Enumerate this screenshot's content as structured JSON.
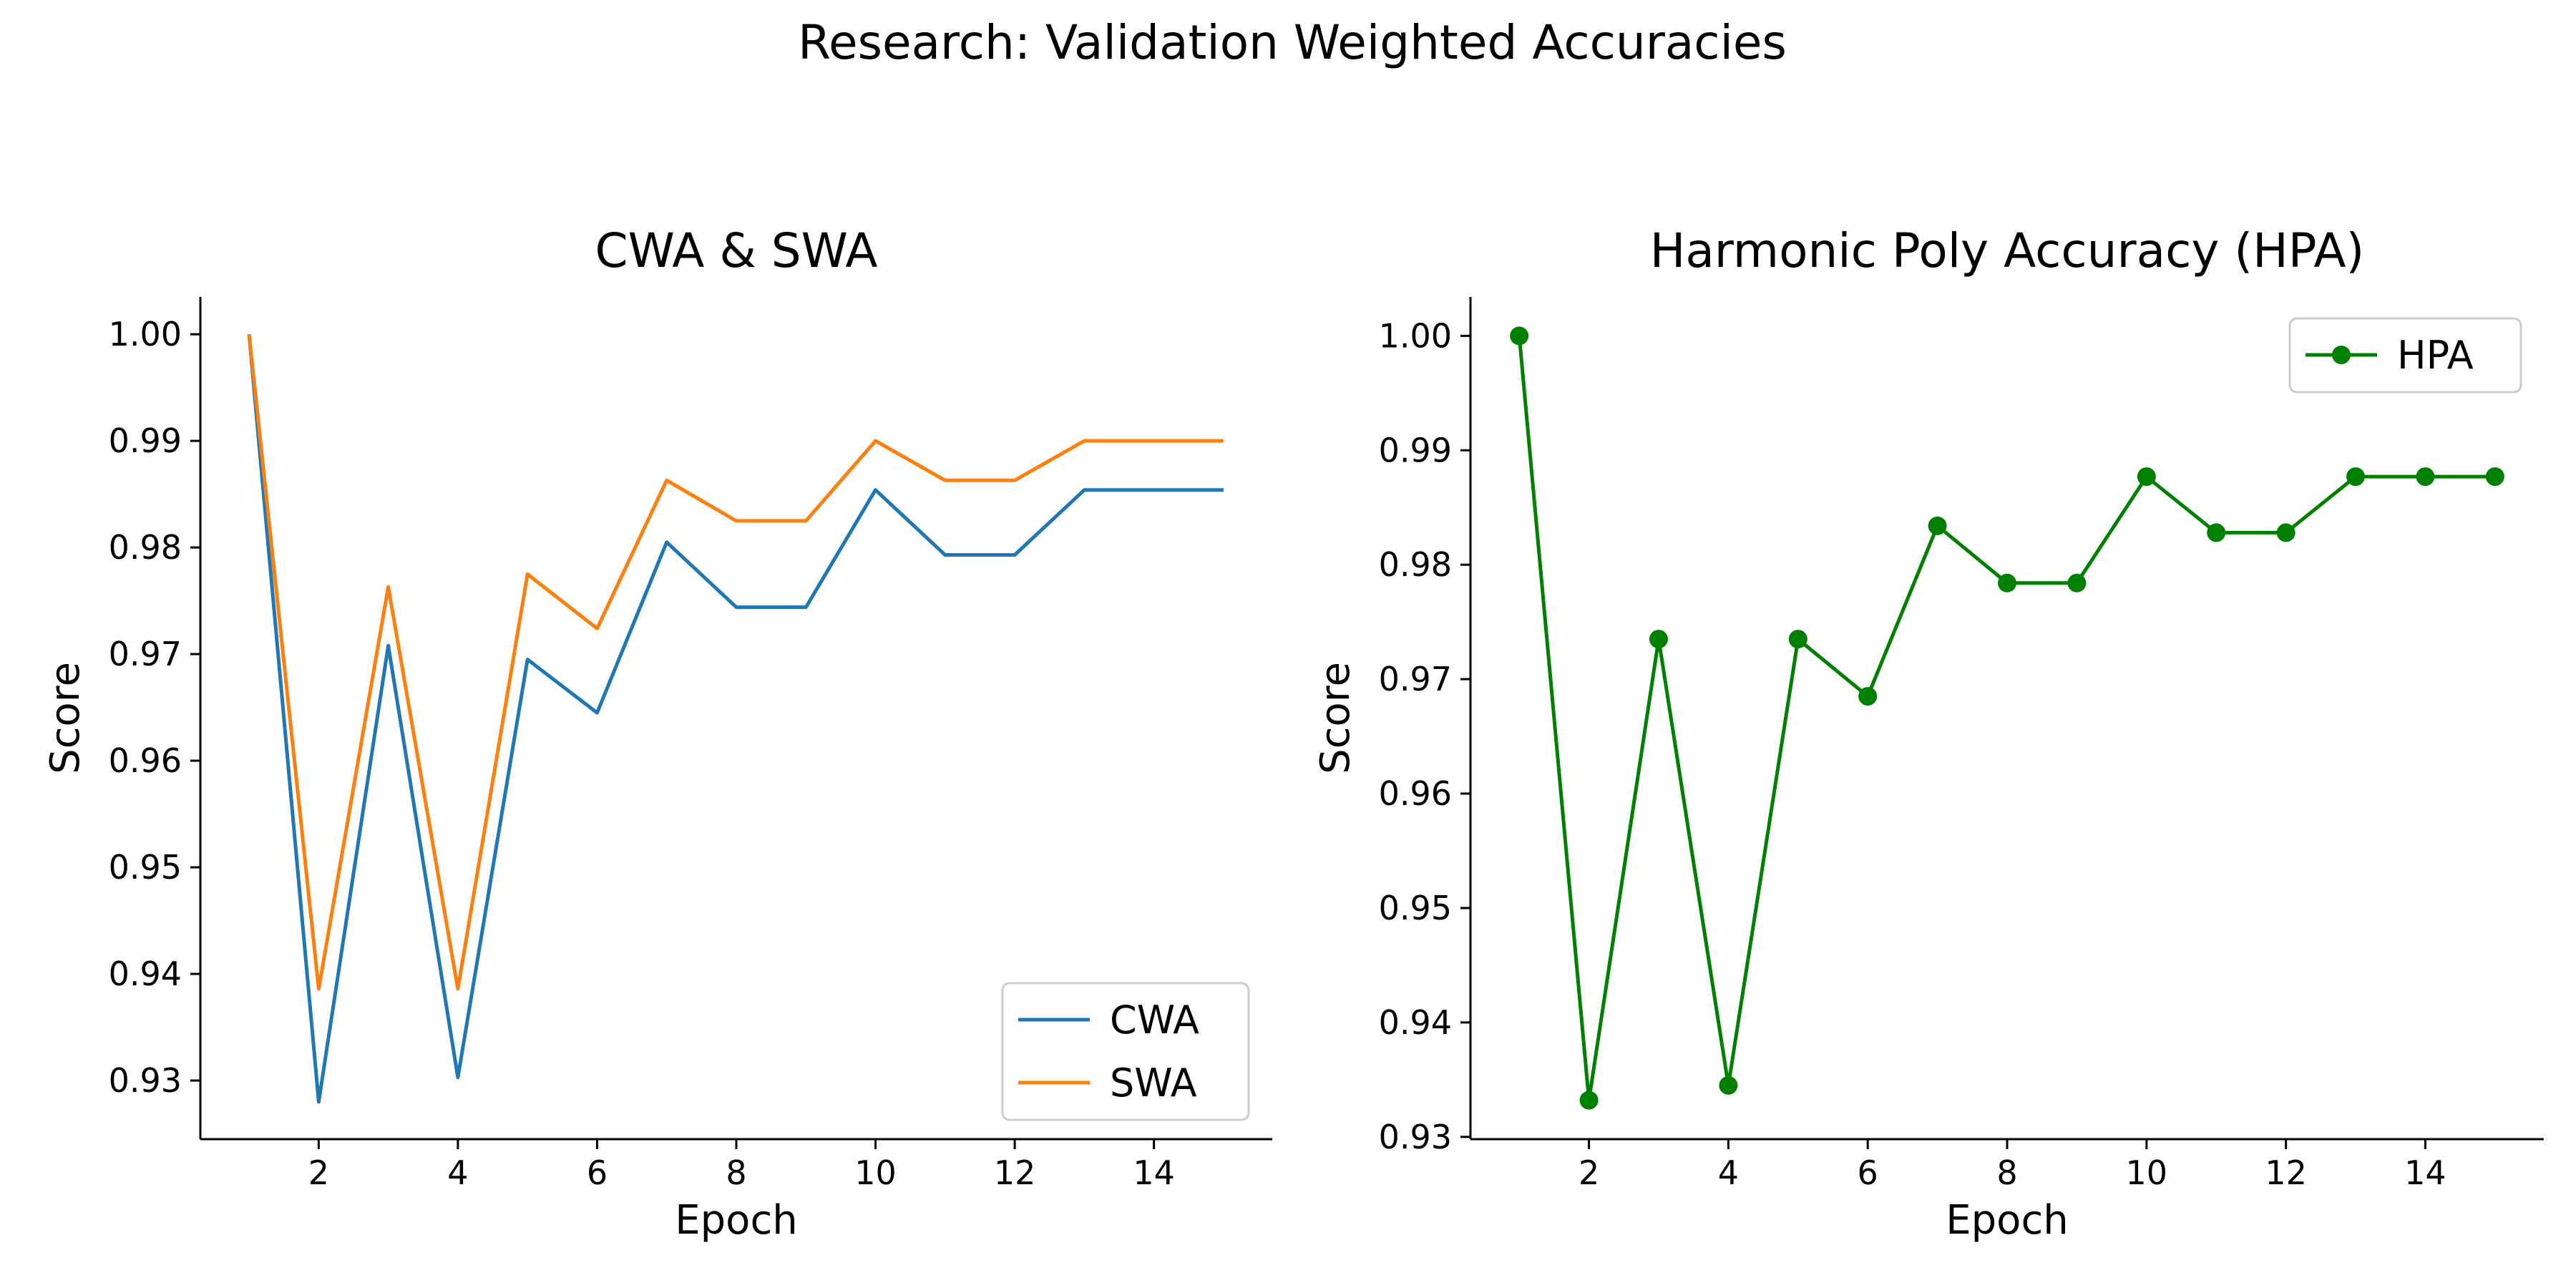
{
  "suptitle": "Research: Validation Weighted Accuracies",
  "colors": {
    "cwa": "#1f77b4",
    "swa": "#ff7f0e",
    "hpa": "#008000"
  },
  "chart_data": [
    {
      "type": "line",
      "title": "CWA & SWA",
      "xlabel": "Epoch",
      "ylabel": "Score",
      "x": [
        1,
        2,
        3,
        4,
        5,
        6,
        7,
        8,
        9,
        10,
        11,
        12,
        13,
        14,
        15
      ],
      "xticks": [
        2,
        4,
        6,
        8,
        10,
        12,
        14
      ],
      "yticks": [
        0.93,
        0.94,
        0.95,
        0.96,
        0.97,
        0.98,
        0.99,
        1.0
      ],
      "ytick_labels": [
        "0.93",
        "0.94",
        "0.95",
        "0.96",
        "0.97",
        "0.98",
        "0.99",
        "1.00"
      ],
      "xlim": [
        0.3,
        15.7
      ],
      "ylim": [
        0.9245,
        1.0035
      ],
      "grid": false,
      "legend": "lower right",
      "series": [
        {
          "name": "CWA",
          "color": "#1f77b4",
          "markers": false,
          "values": [
            1.0,
            0.928,
            0.9708,
            0.9303,
            0.9695,
            0.9645,
            0.9805,
            0.9744,
            0.9744,
            0.9854,
            0.9793,
            0.9793,
            0.9854,
            0.9854,
            0.9854
          ]
        },
        {
          "name": "SWA",
          "color": "#ff7f0e",
          "markers": false,
          "values": [
            1.0,
            0.9386,
            0.9763,
            0.9386,
            0.9775,
            0.9724,
            0.9863,
            0.9825,
            0.9825,
            0.99,
            0.9863,
            0.9863,
            0.99,
            0.99,
            0.99
          ]
        }
      ]
    },
    {
      "type": "line",
      "title": "Harmonic Poly Accuracy (HPA)",
      "xlabel": "Epoch",
      "ylabel": "Score",
      "x": [
        1,
        2,
        3,
        4,
        5,
        6,
        7,
        8,
        9,
        10,
        11,
        12,
        13,
        14,
        15
      ],
      "xticks": [
        2,
        4,
        6,
        8,
        10,
        12,
        14
      ],
      "yticks": [
        0.93,
        0.94,
        0.95,
        0.96,
        0.97,
        0.98,
        0.99,
        1.0
      ],
      "ytick_labels": [
        "0.93",
        "0.94",
        "0.95",
        "0.96",
        "0.97",
        "0.98",
        "0.99",
        "1.00"
      ],
      "xlim": [
        0.3,
        15.7
      ],
      "ylim": [
        0.9298,
        1.0034
      ],
      "grid": false,
      "legend": "upper right",
      "series": [
        {
          "name": "HPA",
          "color": "#008000",
          "markers": true,
          "values": [
            1.0,
            0.9332,
            0.9735,
            0.9345,
            0.9735,
            0.9685,
            0.9834,
            0.9784,
            0.9784,
            0.9877,
            0.9828,
            0.9828,
            0.9877,
            0.9877,
            0.9877
          ]
        }
      ]
    }
  ]
}
